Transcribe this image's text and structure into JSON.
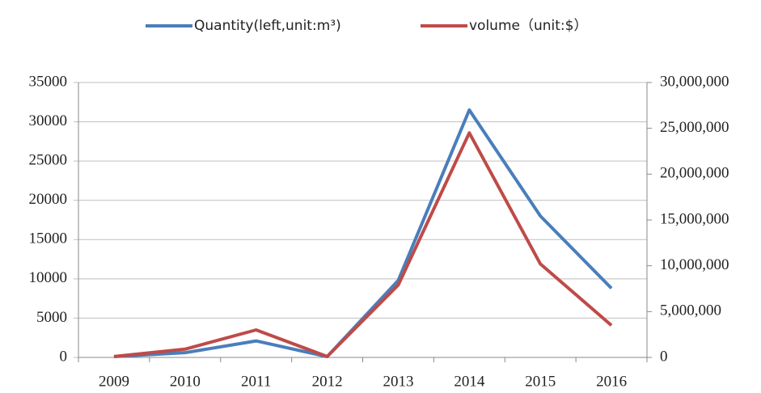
{
  "chart_data": {
    "type": "line",
    "categories": [
      "2009",
      "2010",
      "2011",
      "2012",
      "2013",
      "2014",
      "2015",
      "2016"
    ],
    "series": [
      {
        "name": "Quantity(left,unit:m³)",
        "color": "#4a7ebb",
        "values": [
          100,
          600,
          2100,
          100,
          9800,
          31500,
          18000,
          8800
        ]
      },
      {
        "name": "volume（unit:$）",
        "color": "#be4b48",
        "axis": "y2",
        "values": [
          100000,
          900000,
          3000000,
          100000,
          7900000,
          24500000,
          10200000,
          3500000
        ]
      }
    ],
    "ylim": [
      0,
      35000
    ],
    "yticks": [
      0,
      5000,
      10000,
      15000,
      20000,
      25000,
      30000,
      35000
    ],
    "y2lim": [
      0,
      30000000
    ],
    "y2ticks": [
      0,
      {
        "value": 5000000,
        "label": "5,000,000"
      },
      {
        "value": 10000000,
        "label": "10,000,000"
      },
      {
        "value": 15000000,
        "label": "15,000,000"
      },
      {
        "value": 20000000,
        "label": "20,000,000"
      },
      {
        "value": 25000000,
        "label": "25,000,000"
      },
      {
        "value": 30000000,
        "label": "30,000,000"
      }
    ],
    "grid": true,
    "legend": "top"
  }
}
